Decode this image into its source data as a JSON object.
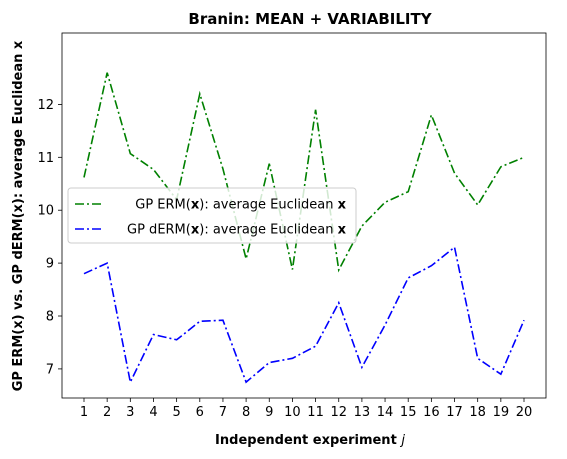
{
  "chart_data": {
    "type": "line",
    "title": "Branin: MEAN + VARIABILITY",
    "xlabel": "Independent experiment",
    "xlabel_var": "j",
    "ylabel": "GP ERM(x) vs. GP dERM(x): average Euclidean x",
    "x": [
      1,
      2,
      3,
      4,
      5,
      6,
      7,
      8,
      9,
      10,
      11,
      12,
      13,
      14,
      15,
      16,
      17,
      18,
      19,
      20
    ],
    "x_tick_labels": [
      "1",
      "2",
      "3",
      "4",
      "5",
      "6",
      "7",
      "8",
      "9",
      "10",
      "11",
      "12",
      "13",
      "14",
      "15",
      "16",
      "17",
      "18",
      "19",
      "20"
    ],
    "y_ticks": [
      7,
      8,
      9,
      10,
      11,
      12
    ],
    "y_tick_labels": [
      "7",
      "8",
      "9",
      "10",
      "11",
      "12"
    ],
    "xlim": [
      0.05,
      20.95
    ],
    "ylim": [
      6.45,
      13.35
    ],
    "grid": false,
    "legend_position": "center-left",
    "series": [
      {
        "name": "GP ERM(x): average Euclidean x",
        "legend_pre": "GP ERM(",
        "legend_bold": "x",
        "legend_post": "): average Euclidean ",
        "legend_tail_bold": "x",
        "color": "#008000",
        "style": "dashdot",
        "values": [
          10.62,
          12.6,
          11.07,
          10.77,
          10.2,
          12.2,
          10.78,
          9.08,
          10.88,
          8.88,
          11.9,
          8.87,
          9.7,
          10.15,
          10.35,
          11.8,
          10.7,
          10.1,
          10.82,
          11.0
        ]
      },
      {
        "name": "GP dERM(x): average Euclidean x",
        "legend_pre": "GP dERM(",
        "legend_bold": "x",
        "legend_post": "): average Euclidean ",
        "legend_tail_bold": "x",
        "color": "#0000ff",
        "style": "dashdot",
        "values": [
          8.8,
          9.0,
          6.75,
          7.65,
          7.55,
          7.9,
          7.92,
          6.75,
          7.12,
          7.2,
          7.43,
          8.25,
          7.03,
          7.83,
          8.72,
          8.95,
          9.3,
          7.2,
          6.9,
          7.92
        ]
      }
    ]
  }
}
